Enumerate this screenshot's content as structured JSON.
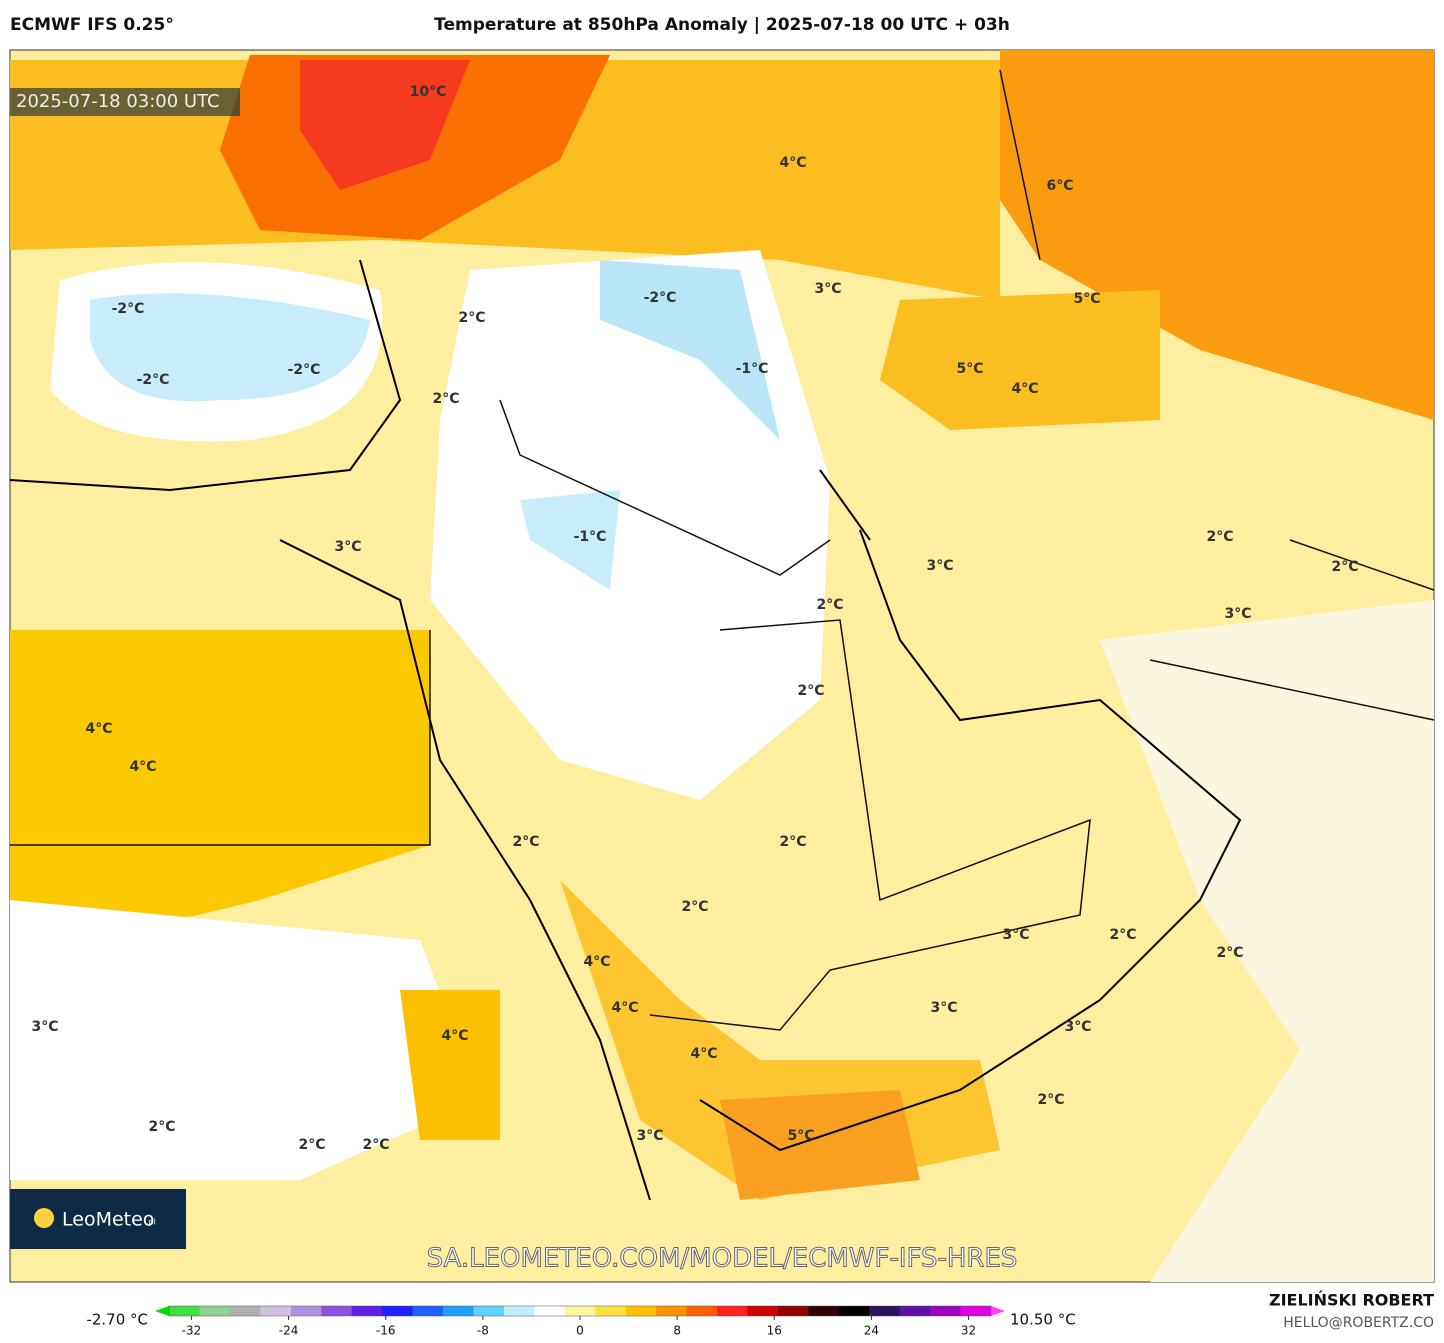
{
  "header": {
    "model": "ECMWF IFS 0.25°",
    "title": "Temperature at 850hPa Anomaly | 2025-07-18 00 UTC + 03h"
  },
  "map": {
    "timestamp": "2025-07-18 03:00 UTC",
    "logo": "LeoMeteo",
    "logo_suffix": ".pl",
    "url": "SA.LEOMETEO.COM/MODEL/ECMWF-IFS-HRES",
    "contour_labels": [
      "10°C",
      "4°C",
      "6°C",
      "-2°C",
      "-2°C",
      "3°C",
      "5°C",
      "2°C",
      "-2°C",
      "-2°C",
      "-1°C",
      "5°C",
      "4°C",
      "2°C",
      "-1°C",
      "3°C",
      "3°C",
      "2°C",
      "2°C",
      "2°C",
      "3°C",
      "2°C",
      "4°C",
      "4°C",
      "2°C",
      "2°C",
      "2°C",
      "3°C",
      "2°C",
      "2°C",
      "4°C",
      "4°C",
      "3°C",
      "3°C",
      "3°C",
      "4°C",
      "4°C",
      "2°C",
      "2°C",
      "2°C",
      "2°C",
      "3°C",
      "5°C"
    ]
  },
  "colorbar": {
    "min_label": "-2.70 °C",
    "max_label": "10.50 °C",
    "lim": [
      -35,
      35
    ],
    "ticks": [
      -32,
      -24,
      -16,
      -8,
      0,
      8,
      16,
      24,
      32
    ],
    "colors": [
      "#00e000",
      "#40e040",
      "#90d090",
      "#b0b0b0",
      "#d0c0e0",
      "#b090e0",
      "#9050e0",
      "#6020e0",
      "#2020ff",
      "#2060ff",
      "#20a0ff",
      "#60d0ff",
      "#c0f0ff",
      "#ffffff",
      "#fff4a0",
      "#ffe040",
      "#ffc000",
      "#ff9000",
      "#ff6000",
      "#ff2020",
      "#d00000",
      "#900000",
      "#300000",
      "#000000",
      "#301060",
      "#6010a0",
      "#a000c0",
      "#e000e0",
      "#ff40ff"
    ]
  },
  "footer": {
    "author": "ZIELIŃSKI ROBERT",
    "email": "HELLO@ROBERTZ.CO"
  }
}
